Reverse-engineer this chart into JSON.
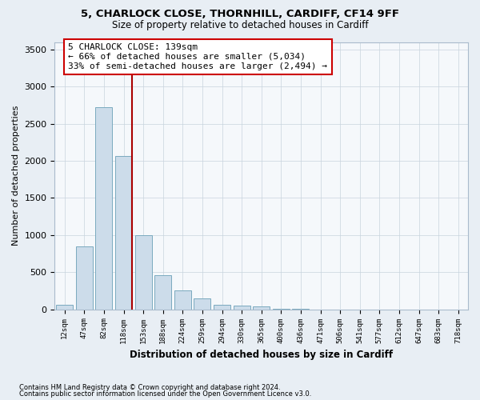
{
  "title_line1": "5, CHARLOCK CLOSE, THORNHILL, CARDIFF, CF14 9FF",
  "title_line2": "Size of property relative to detached houses in Cardiff",
  "xlabel": "Distribution of detached houses by size in Cardiff",
  "ylabel": "Number of detached properties",
  "bar_labels": [
    "12sqm",
    "47sqm",
    "82sqm",
    "118sqm",
    "153sqm",
    "188sqm",
    "224sqm",
    "259sqm",
    "294sqm",
    "330sqm",
    "365sqm",
    "400sqm",
    "436sqm",
    "471sqm",
    "506sqm",
    "541sqm",
    "577sqm",
    "612sqm",
    "647sqm",
    "683sqm",
    "718sqm"
  ],
  "bar_values": [
    60,
    850,
    2720,
    2060,
    1000,
    460,
    250,
    150,
    65,
    55,
    35,
    5,
    5,
    2,
    2,
    1,
    1,
    1,
    0,
    0,
    0
  ],
  "bar_color": "#ccdcea",
  "bar_edge_color": "#7aaabf",
  "vline_bar_index": 3,
  "vline_color": "#aa0000",
  "annotation_text_line1": "5 CHARLOCK CLOSE: 139sqm",
  "annotation_text_line2": "← 66% of detached houses are smaller (5,034)",
  "annotation_text_line3": "33% of semi-detached houses are larger (2,494) →",
  "annotation_box_color": "#cc0000",
  "annotation_bg": "#ffffff",
  "ylim": [
    0,
    3600
  ],
  "yticks": [
    0,
    500,
    1000,
    1500,
    2000,
    2500,
    3000,
    3500
  ],
  "bg_color": "#e8eef4",
  "plot_bg_color": "#f5f8fb",
  "grid_color": "#c8d4de",
  "footnote_line1": "Contains HM Land Registry data © Crown copyright and database right 2024.",
  "footnote_line2": "Contains public sector information licensed under the Open Government Licence v3.0."
}
